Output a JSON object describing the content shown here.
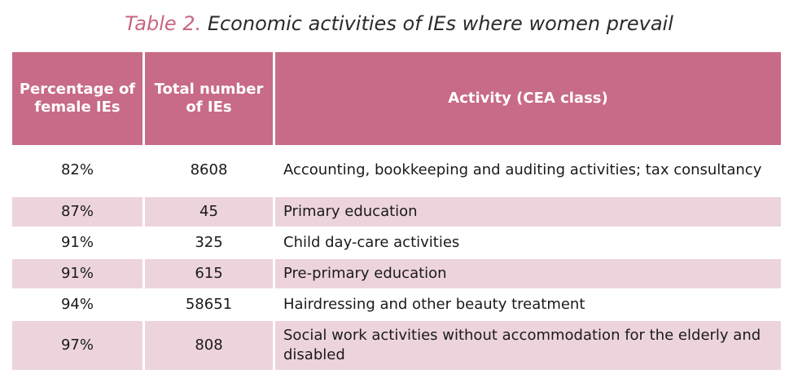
{
  "title": {
    "lead": "Table 2.",
    "rest": "Economic activities of IEs where women prevail"
  },
  "table": {
    "headers": [
      "Percentage of female IEs",
      "Total number of IEs",
      "Activity (CEA class)"
    ],
    "rows": [
      {
        "pct": "82%",
        "total": "8608",
        "activity": "Accounting, bookkeeping and auditing activities; tax consultancy"
      },
      {
        "pct": "87%",
        "total": "45",
        "activity": "Primary education"
      },
      {
        "pct": "91%",
        "total": "325",
        "activity": "Child day-care activities"
      },
      {
        "pct": "91%",
        "total": "615",
        "activity": "Pre-primary education"
      },
      {
        "pct": "94%",
        "total": "58651",
        "activity": "Hairdressing and other beauty treatment"
      },
      {
        "pct": "97%",
        "total": "808",
        "activity": "Social work activities without accommodation for the elderly and disabled"
      }
    ]
  },
  "colors": {
    "header_bg": "#c86b86",
    "row_shade": "#edd4dc",
    "title_accent": "#c9667f"
  }
}
